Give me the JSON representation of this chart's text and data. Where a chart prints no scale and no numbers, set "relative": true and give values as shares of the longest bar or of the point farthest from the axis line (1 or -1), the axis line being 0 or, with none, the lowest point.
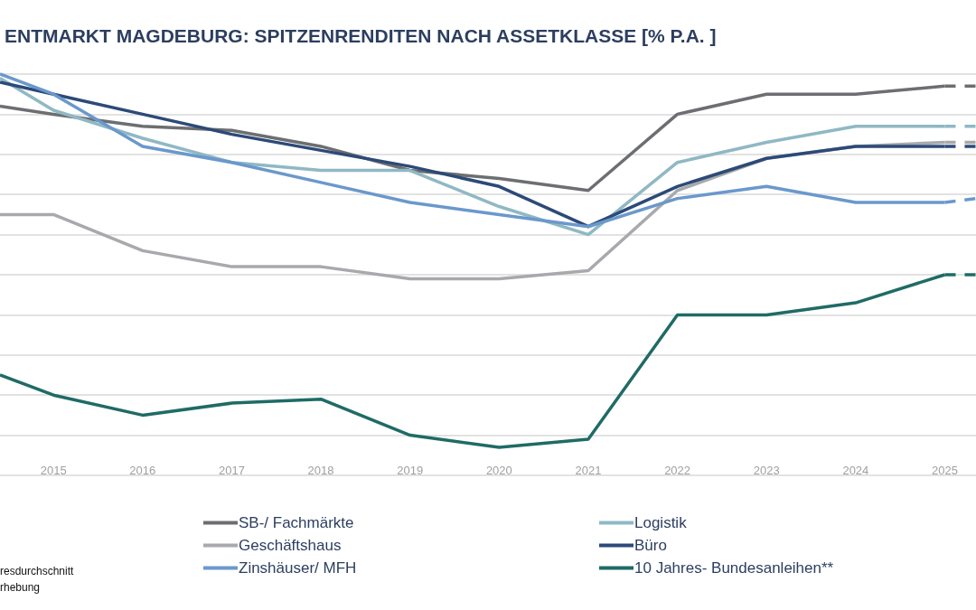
{
  "chart_data": {
    "type": "line",
    "title": "ENTMARKT MAGDEBURG: SPITZENRENDITEN NACH ASSETKLASSE [% P.A. ]",
    "relative": true,
    "x": [
      2014.4,
      2015,
      2016,
      2017,
      2018,
      2019,
      2020,
      2021,
      2022,
      2023,
      2024,
      2025,
      2025.35
    ],
    "xlim": [
      2014.4,
      2025.35
    ],
    "xticks": [
      2015,
      2016,
      2017,
      2018,
      2019,
      2020,
      2021,
      2022,
      2023,
      2024,
      2025
    ],
    "grid": "y",
    "legend": "bottom",
    "marker": "none",
    "line_style": "solid",
    "series": [
      {
        "name": "SB-/ Fachmärkte",
        "color": "#6d6e71",
        "values": [
          0.92,
          0.9,
          0.87,
          0.86,
          0.82,
          0.76,
          0.74,
          0.71,
          0.9,
          0.95,
          0.95,
          0.97,
          null
        ]
      },
      {
        "name": "Logistik",
        "color": "#8fb8c4",
        "values": [
          0.99,
          0.91,
          0.84,
          0.78,
          0.76,
          0.76,
          0.67,
          0.6,
          0.78,
          0.83,
          0.87,
          0.87,
          null
        ]
      },
      {
        "name": "Geschäftshaus",
        "color": "#a7a9ac",
        "values": [
          0.65,
          0.65,
          0.56,
          0.52,
          0.52,
          0.49,
          0.49,
          0.51,
          0.71,
          0.79,
          0.82,
          0.83,
          null
        ]
      },
      {
        "name": "Büro",
        "color": "#2c4a78",
        "values": [
          0.98,
          0.95,
          0.9,
          0.85,
          0.81,
          0.77,
          0.72,
          0.62,
          0.72,
          0.79,
          0.82,
          0.82,
          null
        ]
      },
      {
        "name": "Zinshäuser/ MFH",
        "color": "#6a98cc",
        "values": [
          1.0,
          0.95,
          0.82,
          0.78,
          0.73,
          0.68,
          0.65,
          0.62,
          0.69,
          0.72,
          0.68,
          0.68,
          null
        ]
      },
      {
        "name": "10 Jahres- Bundesanleihen**",
        "color": "#1f6b66",
        "values": [
          0.25,
          0.2,
          0.15,
          0.18,
          0.19,
          0.1,
          0.07,
          0.09,
          0.4,
          0.4,
          0.43,
          0.5,
          null
        ]
      },
      {
        "color": "#6d6e71",
        "line_style": "dashed",
        "values": [
          null,
          null,
          null,
          null,
          null,
          null,
          null,
          null,
          null,
          null,
          null,
          0.97,
          0.97
        ]
      },
      {
        "color": "#8fb8c4",
        "line_style": "dashed",
        "values": [
          null,
          null,
          null,
          null,
          null,
          null,
          null,
          null,
          null,
          null,
          null,
          0.87,
          0.87
        ]
      },
      {
        "color": "#a7a9ac",
        "line_style": "dashed",
        "values": [
          null,
          null,
          null,
          null,
          null,
          null,
          null,
          null,
          null,
          null,
          null,
          0.83,
          0.83
        ]
      },
      {
        "color": "#2c4a78",
        "line_style": "dashed",
        "values": [
          null,
          null,
          null,
          null,
          null,
          null,
          null,
          null,
          null,
          null,
          null,
          0.82,
          0.82
        ]
      },
      {
        "color": "#6a98cc",
        "line_style": "dashed",
        "values": [
          null,
          null,
          null,
          null,
          null,
          null,
          null,
          null,
          null,
          null,
          null,
          0.68,
          0.69
        ]
      },
      {
        "color": "#1f6b66",
        "line_style": "dashed",
        "values": [
          null,
          null,
          null,
          null,
          null,
          null,
          null,
          null,
          null,
          null,
          null,
          0.5,
          0.5
        ]
      }
    ],
    "annotations": [
      "resdurchschnitt",
      "rhebung"
    ]
  }
}
